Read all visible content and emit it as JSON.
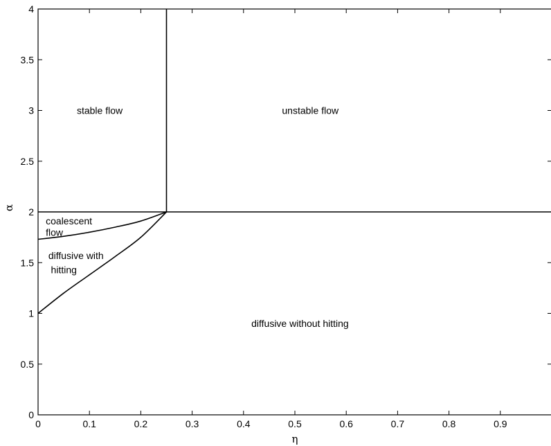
{
  "chart_data": {
    "type": "line",
    "title": "",
    "xlabel": "η",
    "ylabel": "α",
    "xlim": [
      0,
      1
    ],
    "ylim": [
      0,
      4
    ],
    "xticks": [
      0,
      0.1,
      0.2,
      0.3,
      0.4,
      0.5,
      0.6,
      0.7,
      0.8,
      0.9
    ],
    "xtick_labels": [
      "0",
      "0.1",
      "0.2",
      "0.3",
      "0.4",
      "0.5",
      "0.6",
      "0.7",
      "0.8",
      "0.9"
    ],
    "yticks": [
      0,
      0.5,
      1,
      1.5,
      2,
      2.5,
      3,
      3.5,
      4
    ],
    "ytick_labels": [
      "0",
      "0.5",
      "1",
      "1.5",
      "2",
      "2.5",
      "3",
      "3.5",
      "4"
    ],
    "grid": false,
    "legend": "none",
    "series": [
      {
        "x": [
          0.25,
          0.25
        ],
        "y": [
          2,
          4
        ]
      },
      {
        "x": [
          0,
          1
        ],
        "y": [
          2,
          2
        ]
      },
      {
        "x": [
          0,
          0.05,
          0.1,
          0.15,
          0.2,
          0.25
        ],
        "y": [
          1.73,
          1.76,
          1.8,
          1.85,
          1.91,
          2.0
        ]
      },
      {
        "x": [
          0,
          0.05,
          0.1,
          0.15,
          0.2,
          0.25
        ],
        "y": [
          1.0,
          1.2,
          1.38,
          1.56,
          1.75,
          2.0
        ]
      }
    ],
    "annotations": [
      {
        "text": "stable flow",
        "x": 0.12,
        "y": 3.0
      },
      {
        "text": "unstable flow",
        "x": 0.53,
        "y": 3.0
      },
      {
        "text": "coalescent",
        "x": 0.015,
        "y": 1.91
      },
      {
        "text": "flow",
        "x": 0.015,
        "y": 1.8
      },
      {
        "text": "diffusive with",
        "x": 0.02,
        "y": 1.57
      },
      {
        "text": "hitting",
        "x": 0.025,
        "y": 1.43
      },
      {
        "text": "diffusive without hitting",
        "x": 0.51,
        "y": 0.9
      }
    ]
  }
}
